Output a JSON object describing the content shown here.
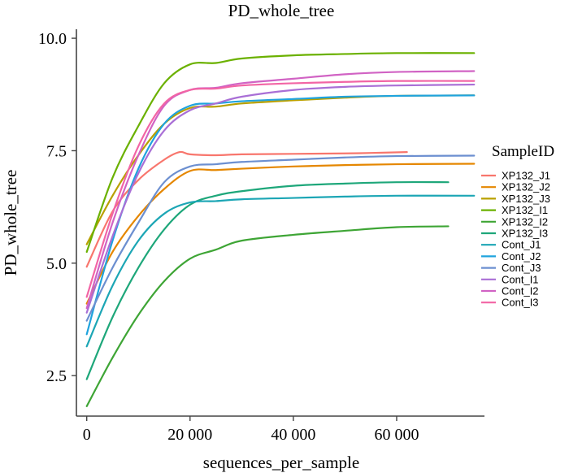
{
  "chart_data": {
    "type": "line",
    "title": "PD_whole_tree",
    "xlabel": "sequences_per_sample",
    "ylabel": "PD_whole_tree",
    "xlim": [
      -2000,
      77000
    ],
    "ylim": [
      1.6,
      10.2
    ],
    "x_ticks": [
      0,
      20000,
      40000,
      60000
    ],
    "x_tick_labels": [
      "0",
      "20 000",
      "40 000",
      "60 000"
    ],
    "y_ticks": [
      2.5,
      5.0,
      7.5,
      10.0
    ],
    "y_tick_labels": [
      "2.5",
      "5.0",
      "7.5",
      "10.0"
    ],
    "grid": false,
    "legend": {
      "title": "SampleID",
      "position": "right"
    },
    "series": [
      {
        "name": "XP132_J1",
        "color": "#F8766D",
        "points": [
          [
            0,
            4.92
          ],
          [
            5000,
            6.15
          ],
          [
            10000,
            6.85
          ],
          [
            15000,
            7.3
          ],
          [
            18000,
            7.47
          ],
          [
            20000,
            7.42
          ],
          [
            25000,
            7.4
          ],
          [
            30000,
            7.42
          ],
          [
            40000,
            7.43
          ],
          [
            50000,
            7.44
          ],
          [
            55000,
            7.45
          ],
          [
            62000,
            7.47
          ]
        ]
      },
      {
        "name": "XP132_J2",
        "color": "#E58700",
        "points": [
          [
            0,
            4.1
          ],
          [
            5000,
            5.25
          ],
          [
            10000,
            6.05
          ],
          [
            15000,
            6.65
          ],
          [
            20000,
            7.05
          ],
          [
            25000,
            7.07
          ],
          [
            30000,
            7.1
          ],
          [
            40000,
            7.15
          ],
          [
            50000,
            7.18
          ],
          [
            60000,
            7.2
          ],
          [
            75000,
            7.21
          ]
        ]
      },
      {
        "name": "XP132_J3",
        "color": "#B9A000",
        "points": [
          [
            0,
            5.42
          ],
          [
            5000,
            6.5
          ],
          [
            10000,
            7.4
          ],
          [
            15000,
            8.1
          ],
          [
            20000,
            8.45
          ],
          [
            25000,
            8.48
          ],
          [
            30000,
            8.55
          ],
          [
            40000,
            8.62
          ],
          [
            50000,
            8.68
          ],
          [
            60000,
            8.72
          ],
          [
            75000,
            8.73
          ]
        ]
      },
      {
        "name": "XP132_I1",
        "color": "#6BB100",
        "points": [
          [
            0,
            5.25
          ],
          [
            5000,
            6.9
          ],
          [
            10000,
            8.05
          ],
          [
            15000,
            9.0
          ],
          [
            20000,
            9.42
          ],
          [
            25000,
            9.45
          ],
          [
            30000,
            9.55
          ],
          [
            40000,
            9.62
          ],
          [
            50000,
            9.65
          ],
          [
            60000,
            9.67
          ],
          [
            75000,
            9.67
          ]
        ]
      },
      {
        "name": "XP132_I2",
        "color": "#3EA535",
        "points": [
          [
            0,
            1.82
          ],
          [
            5000,
            2.9
          ],
          [
            10000,
            3.85
          ],
          [
            15000,
            4.6
          ],
          [
            20000,
            5.1
          ],
          [
            25000,
            5.3
          ],
          [
            30000,
            5.5
          ],
          [
            40000,
            5.63
          ],
          [
            50000,
            5.72
          ],
          [
            60000,
            5.8
          ],
          [
            70000,
            5.82
          ]
        ]
      },
      {
        "name": "XP132_I3",
        "color": "#1EA77A",
        "points": [
          [
            0,
            2.42
          ],
          [
            5000,
            3.8
          ],
          [
            10000,
            4.9
          ],
          [
            15000,
            5.75
          ],
          [
            20000,
            6.3
          ],
          [
            25000,
            6.5
          ],
          [
            30000,
            6.6
          ],
          [
            40000,
            6.72
          ],
          [
            50000,
            6.77
          ],
          [
            60000,
            6.8
          ],
          [
            70000,
            6.8
          ]
        ]
      },
      {
        "name": "Cont_J1",
        "color": "#1CA6B5",
        "points": [
          [
            0,
            3.15
          ],
          [
            5000,
            4.5
          ],
          [
            10000,
            5.5
          ],
          [
            15000,
            6.1
          ],
          [
            20000,
            6.35
          ],
          [
            25000,
            6.38
          ],
          [
            30000,
            6.42
          ],
          [
            40000,
            6.45
          ],
          [
            50000,
            6.48
          ],
          [
            60000,
            6.5
          ],
          [
            75000,
            6.5
          ]
        ]
      },
      {
        "name": "Cont_J2",
        "color": "#1FA3DD",
        "points": [
          [
            0,
            3.42
          ],
          [
            5000,
            5.5
          ],
          [
            10000,
            7.1
          ],
          [
            15000,
            8.1
          ],
          [
            20000,
            8.5
          ],
          [
            25000,
            8.55
          ],
          [
            30000,
            8.6
          ],
          [
            40000,
            8.65
          ],
          [
            50000,
            8.7
          ],
          [
            60000,
            8.72
          ],
          [
            75000,
            8.73
          ]
        ]
      },
      {
        "name": "Cont_J3",
        "color": "#6C8FD0",
        "points": [
          [
            0,
            3.72
          ],
          [
            5000,
            4.9
          ],
          [
            10000,
            5.9
          ],
          [
            15000,
            6.8
          ],
          [
            20000,
            7.15
          ],
          [
            25000,
            7.2
          ],
          [
            30000,
            7.25
          ],
          [
            40000,
            7.3
          ],
          [
            50000,
            7.35
          ],
          [
            60000,
            7.38
          ],
          [
            75000,
            7.39
          ]
        ]
      },
      {
        "name": "Cont_I1",
        "color": "#A96FD6",
        "points": [
          [
            0,
            3.9
          ],
          [
            5000,
            5.6
          ],
          [
            10000,
            7.0
          ],
          [
            15000,
            7.95
          ],
          [
            20000,
            8.4
          ],
          [
            25000,
            8.55
          ],
          [
            30000,
            8.7
          ],
          [
            40000,
            8.85
          ],
          [
            50000,
            8.92
          ],
          [
            60000,
            8.95
          ],
          [
            75000,
            8.97
          ]
        ]
      },
      {
        "name": "Cont_I2",
        "color": "#D163C4",
        "points": [
          [
            0,
            4.0
          ],
          [
            5000,
            5.9
          ],
          [
            10000,
            7.4
          ],
          [
            15000,
            8.5
          ],
          [
            20000,
            8.85
          ],
          [
            25000,
            8.9
          ],
          [
            30000,
            9.0
          ],
          [
            40000,
            9.1
          ],
          [
            50000,
            9.2
          ],
          [
            60000,
            9.25
          ],
          [
            75000,
            9.27
          ]
        ]
      },
      {
        "name": "Cont_I3",
        "color": "#F265A5",
        "points": [
          [
            0,
            4.25
          ],
          [
            5000,
            6.1
          ],
          [
            10000,
            7.6
          ],
          [
            15000,
            8.55
          ],
          [
            20000,
            8.85
          ],
          [
            25000,
            8.88
          ],
          [
            30000,
            8.95
          ],
          [
            40000,
            9.0
          ],
          [
            50000,
            9.03
          ],
          [
            60000,
            9.05
          ],
          [
            75000,
            9.05
          ]
        ]
      }
    ]
  }
}
